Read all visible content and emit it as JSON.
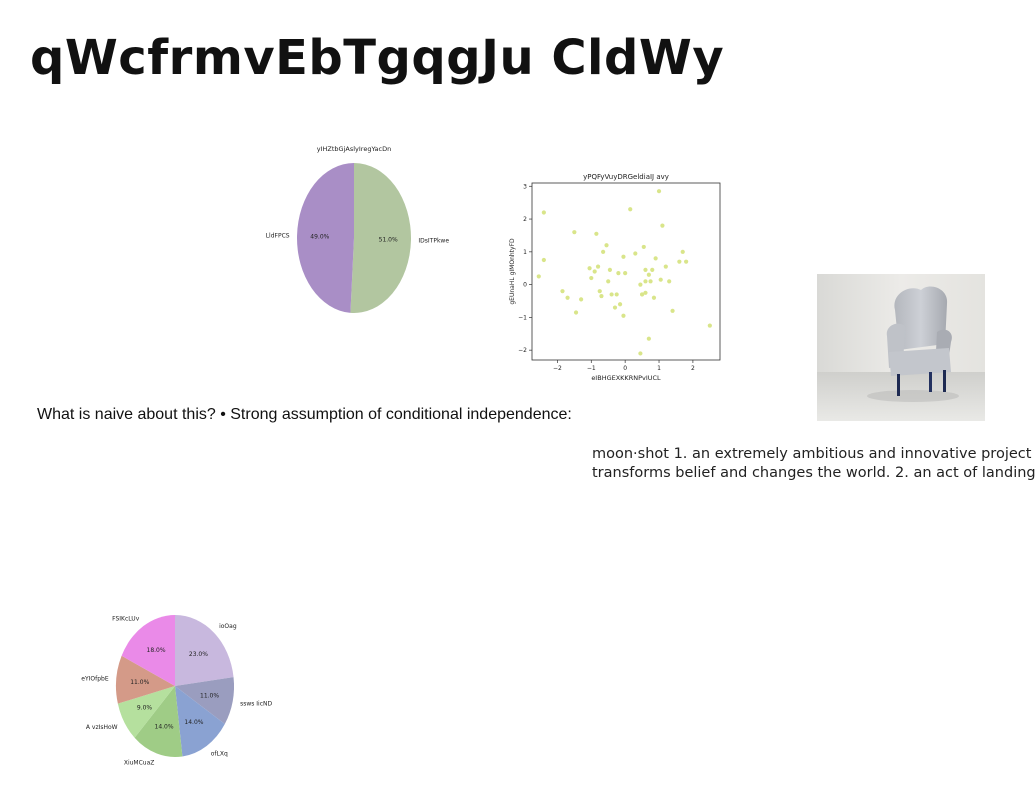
{
  "page": {
    "title": "qWcfrmvEbTgqgJu CldWy",
    "note": "What is naive about this? • Strong assumption of conditional independence:",
    "definition": {
      "line1": "moon·shot 1. an extremely ambitious and innovative project",
      "line2": "transforms belief and changes the world. 2. an act of landing"
    },
    "photo_subject": "grey-armchair-photo"
  },
  "chart_data": [
    {
      "type": "pie",
      "title": "yIHZtbGjAslyIregYacDn",
      "labels": [
        "IDsITPkwe",
        "LldFPCS"
      ],
      "values": [
        51.0,
        49.0
      ],
      "pct_labels": [
        "51.0%",
        "49.0%"
      ],
      "colors": [
        "#b2c6a0",
        "#a98ec6"
      ],
      "start_angle_deg": 90
    },
    {
      "type": "scatter",
      "title": "yPQFyVuyDRGeldiaIJ avy",
      "xlabel": "eIBHGEXKKRNPvIUCL",
      "ylabel": "gEUnaHL gIMOnhtyFD",
      "xlim": [
        -2.75,
        2.8
      ],
      "ylim": [
        -2.3,
        3.1
      ],
      "xticks": [
        -2,
        -1,
        0,
        1,
        2
      ],
      "yticks": [
        -2,
        -1,
        0,
        1,
        2,
        3
      ],
      "xtick_labels": [
        "−2",
        "−1",
        "0",
        "1",
        "2"
      ],
      "ytick_labels": [
        "−2",
        "−1",
        "0",
        "1",
        "2",
        "3"
      ],
      "color": "#d9e58a",
      "points": [
        [
          -2.4,
          2.2
        ],
        [
          -2.55,
          0.25
        ],
        [
          -2.4,
          0.75
        ],
        [
          -1.85,
          -0.2
        ],
        [
          -1.7,
          -0.4
        ],
        [
          -1.5,
          1.6
        ],
        [
          -1.45,
          -0.85
        ],
        [
          -1.3,
          -0.45
        ],
        [
          -1.05,
          0.5
        ],
        [
          -1.0,
          0.2
        ],
        [
          -0.9,
          0.4
        ],
        [
          -0.85,
          1.55
        ],
        [
          -0.8,
          0.55
        ],
        [
          -0.75,
          -0.2
        ],
        [
          -0.7,
          -0.35
        ],
        [
          -0.65,
          1.0
        ],
        [
          -0.55,
          1.2
        ],
        [
          -0.5,
          0.1
        ],
        [
          -0.45,
          0.45
        ],
        [
          -0.4,
          -0.3
        ],
        [
          -0.3,
          -0.7
        ],
        [
          -0.25,
          -0.3
        ],
        [
          -0.2,
          0.35
        ],
        [
          -0.15,
          -0.6
        ],
        [
          -0.05,
          0.85
        ],
        [
          -0.05,
          -0.95
        ],
        [
          0.0,
          0.35
        ],
        [
          0.15,
          2.3
        ],
        [
          0.3,
          0.95
        ],
        [
          0.45,
          0.0
        ],
        [
          0.5,
          -0.3
        ],
        [
          0.5,
          -0.3
        ],
        [
          0.55,
          1.15
        ],
        [
          0.6,
          0.45
        ],
        [
          0.6,
          0.1
        ],
        [
          0.6,
          -0.25
        ],
        [
          0.7,
          0.3
        ],
        [
          0.75,
          0.1
        ],
        [
          0.8,
          0.45
        ],
        [
          0.85,
          -0.4
        ],
        [
          0.9,
          0.8
        ],
        [
          1.0,
          2.85
        ],
        [
          1.05,
          0.15
        ],
        [
          1.1,
          1.8
        ],
        [
          1.2,
          0.55
        ],
        [
          1.3,
          0.1
        ],
        [
          1.4,
          -0.8
        ],
        [
          1.6,
          0.7
        ],
        [
          1.7,
          1.0
        ],
        [
          1.8,
          0.7
        ],
        [
          0.7,
          -1.65
        ],
        [
          0.45,
          -2.1
        ],
        [
          2.5,
          -1.25
        ]
      ]
    },
    {
      "type": "pie",
      "title": "",
      "labels": [
        "ioOag",
        "ssws IicND",
        "ofLXq",
        "XiuMCuaZ",
        "A vzIsHoW",
        "eYIOfpbE",
        "FSIKcLUv"
      ],
      "values": [
        23.0,
        11.0,
        14.0,
        14.0,
        9.0,
        11.0,
        18.0
      ],
      "pct_labels": [
        "23.0%",
        "11.0%",
        "14.0%",
        "14.0%",
        "9.0%",
        "11.0%",
        "18.0%"
      ],
      "colors": [
        "#c8b8de",
        "#9a9dbf",
        "#8aa2d2",
        "#9fcc86",
        "#b5e09e",
        "#d49a88",
        "#ea8ae8"
      ],
      "start_angle_deg": 90
    }
  ]
}
